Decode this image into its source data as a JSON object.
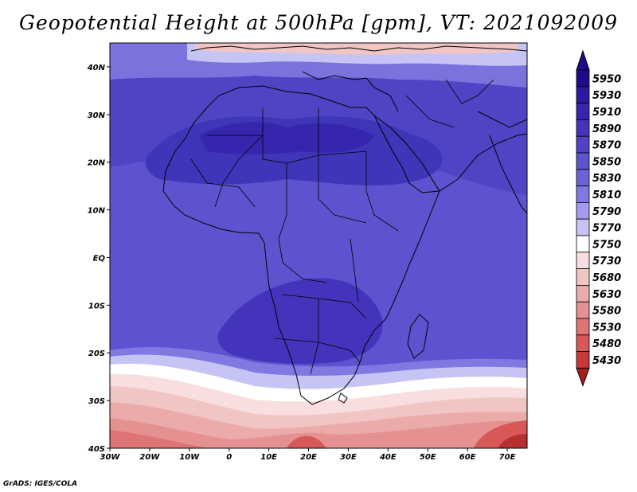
{
  "title": "Geopotential Height at 500hPa [gpm], VT: 2021092009",
  "credit": "GrADS: IGES/COLA",
  "map": {
    "region": "Africa",
    "variable": "Geopotential Height at 500hPa",
    "units": "gpm",
    "valid_time": "2021092009",
    "lon_range": [
      -30,
      75
    ],
    "lat_range": [
      -40,
      45
    ]
  },
  "axes": {
    "lat_labels": [
      {
        "text": "40N",
        "lat": 40
      },
      {
        "text": "30N",
        "lat": 30
      },
      {
        "text": "20N",
        "lat": 20
      },
      {
        "text": "10N",
        "lat": 10
      },
      {
        "text": "EQ",
        "lat": 0
      },
      {
        "text": "10S",
        "lat": -10
      },
      {
        "text": "20S",
        "lat": -20
      },
      {
        "text": "30S",
        "lat": -30
      },
      {
        "text": "40S",
        "lat": -40
      }
    ],
    "lon_labels": [
      {
        "text": "30W",
        "lon": -30
      },
      {
        "text": "20W",
        "lon": -20
      },
      {
        "text": "10W",
        "lon": -10
      },
      {
        "text": "0",
        "lon": 0
      },
      {
        "text": "10E",
        "lon": 10
      },
      {
        "text": "20E",
        "lon": 20
      },
      {
        "text": "30E",
        "lon": 30
      },
      {
        "text": "40E",
        "lon": 40
      },
      {
        "text": "50E",
        "lon": 50
      },
      {
        "text": "60E",
        "lon": 60
      },
      {
        "text": "70E",
        "lon": 70
      }
    ]
  },
  "colorbar": {
    "levels": [
      {
        "value": "5950",
        "color": "#1e0b8c"
      },
      {
        "value": "5930",
        "color": "#2a1a9e"
      },
      {
        "value": "5910",
        "color": "#3526ad"
      },
      {
        "value": "5890",
        "color": "#4334bb"
      },
      {
        "value": "5870",
        "color": "#5043c6"
      },
      {
        "value": "5850",
        "color": "#5d53cf"
      },
      {
        "value": "5830",
        "color": "#6b63d8"
      },
      {
        "value": "5810",
        "color": "#8079e2"
      },
      {
        "value": "5790",
        "color": "#a19deb"
      },
      {
        "value": "5770",
        "color": "#c6c4f4"
      },
      {
        "value": "5750",
        "color": "#ffffff"
      },
      {
        "value": "5730",
        "color": "#f8dede"
      },
      {
        "value": "5680",
        "color": "#f2c5c5"
      },
      {
        "value": "5630",
        "color": "#ecabab"
      },
      {
        "value": "5580",
        "color": "#e59191"
      },
      {
        "value": "5530",
        "color": "#de7474"
      },
      {
        "value": "5480",
        "color": "#d85858"
      },
      {
        "value": "5430",
        "color": "#c83a3a"
      }
    ],
    "overflow_high_color": "#1e0b8c",
    "overflow_low_color": "#a61e1e"
  }
}
